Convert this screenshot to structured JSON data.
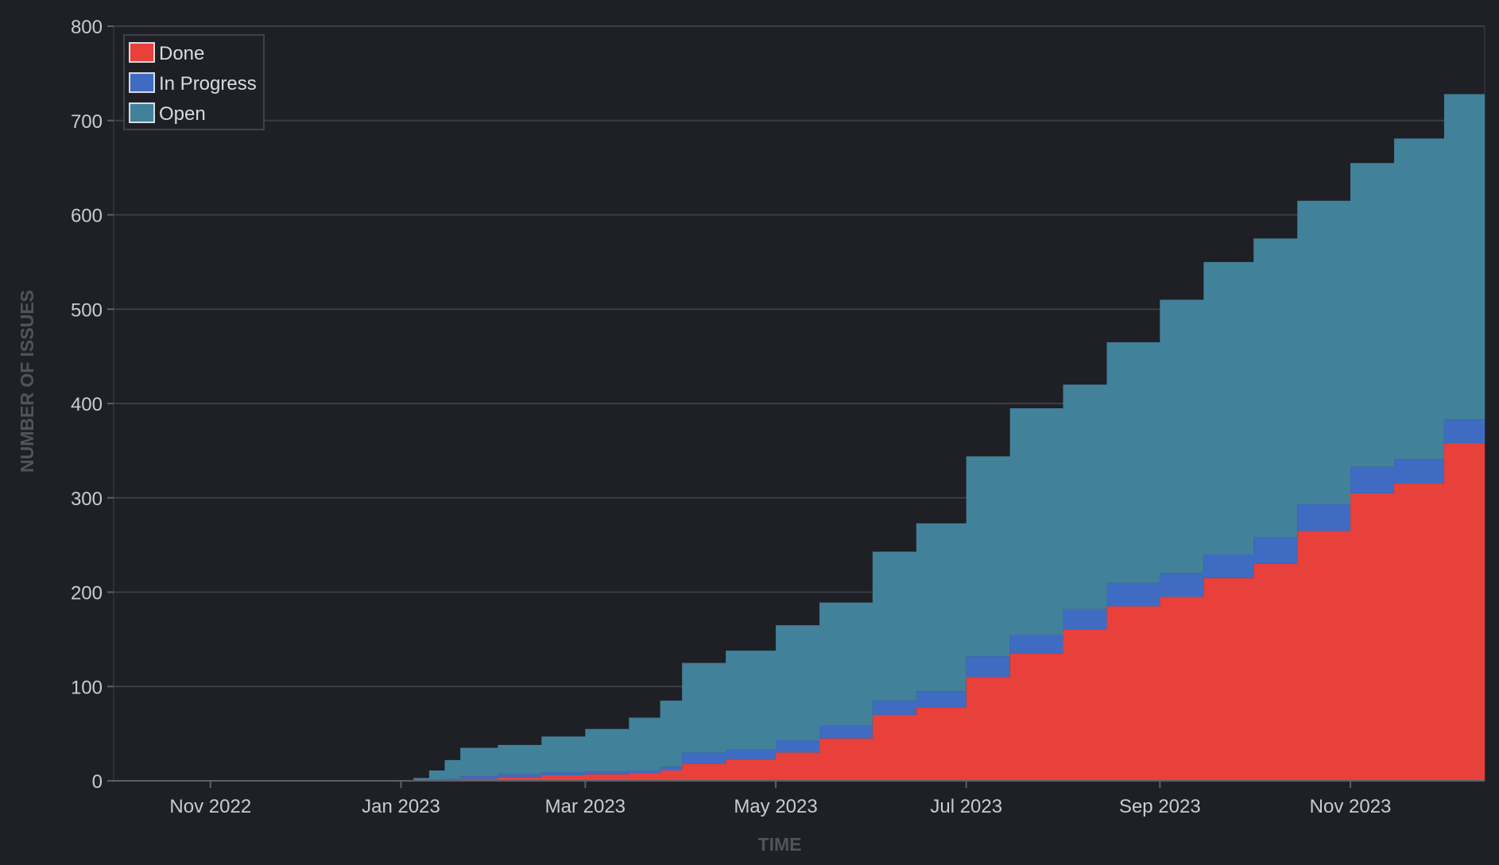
{
  "chart_data": {
    "type": "area",
    "stacked": true,
    "xlabel": "TIME",
    "ylabel": "NUMBER OF ISSUES",
    "ylim": [
      0,
      800
    ],
    "xlim": [
      "2022-10-01",
      "2023-12-14"
    ],
    "yticks": [
      0,
      100,
      200,
      300,
      400,
      500,
      600,
      700,
      800
    ],
    "xticks": [
      {
        "date": "2022-11-01",
        "label": "Nov 2022"
      },
      {
        "date": "2023-01-01",
        "label": "Jan 2023"
      },
      {
        "date": "2023-03-01",
        "label": "Mar 2023"
      },
      {
        "date": "2023-05-01",
        "label": "May 2023"
      },
      {
        "date": "2023-07-01",
        "label": "Jul 2023"
      },
      {
        "date": "2023-09-01",
        "label": "Sep 2023"
      },
      {
        "date": "2023-11-01",
        "label": "Nov 2023"
      }
    ],
    "grid": "horizontal",
    "legend_position": "top-left",
    "dates": [
      "2022-10-01",
      "2022-12-31",
      "2023-01-05",
      "2023-01-10",
      "2023-01-15",
      "2023-01-20",
      "2023-02-01",
      "2023-02-15",
      "2023-03-01",
      "2023-03-15",
      "2023-03-25",
      "2023-04-01",
      "2023-04-15",
      "2023-05-01",
      "2023-05-15",
      "2023-06-01",
      "2023-06-15",
      "2023-07-01",
      "2023-07-15",
      "2023-08-01",
      "2023-08-15",
      "2023-09-01",
      "2023-09-15",
      "2023-10-01",
      "2023-10-15",
      "2023-11-01",
      "2023-11-15",
      "2023-12-01",
      "2023-12-14"
    ],
    "series": [
      {
        "name": "Done",
        "color": "#e8403a",
        "values": [
          0,
          0,
          0,
          0,
          0,
          2,
          4,
          6,
          7,
          8,
          11,
          18,
          23,
          30,
          45,
          70,
          78,
          110,
          135,
          160,
          185,
          195,
          215,
          230,
          265,
          305,
          315,
          358,
          368
        ]
      },
      {
        "name": "In Progress",
        "color": "#3f6cc2",
        "values": [
          0,
          0,
          0,
          1,
          2,
          3,
          3,
          3,
          3,
          3,
          4,
          12,
          10,
          13,
          14,
          15,
          17,
          22,
          20,
          22,
          25,
          25,
          25,
          28,
          28,
          28,
          26,
          25,
          22
        ]
      },
      {
        "name": "Open",
        "color": "#42819a",
        "values": [
          0,
          0,
          3,
          10,
          20,
          30,
          31,
          38,
          45,
          56,
          70,
          95,
          105,
          122,
          130,
          158,
          178,
          212,
          240,
          238,
          255,
          290,
          310,
          317,
          322,
          322,
          340,
          345,
          354
        ]
      }
    ]
  }
}
